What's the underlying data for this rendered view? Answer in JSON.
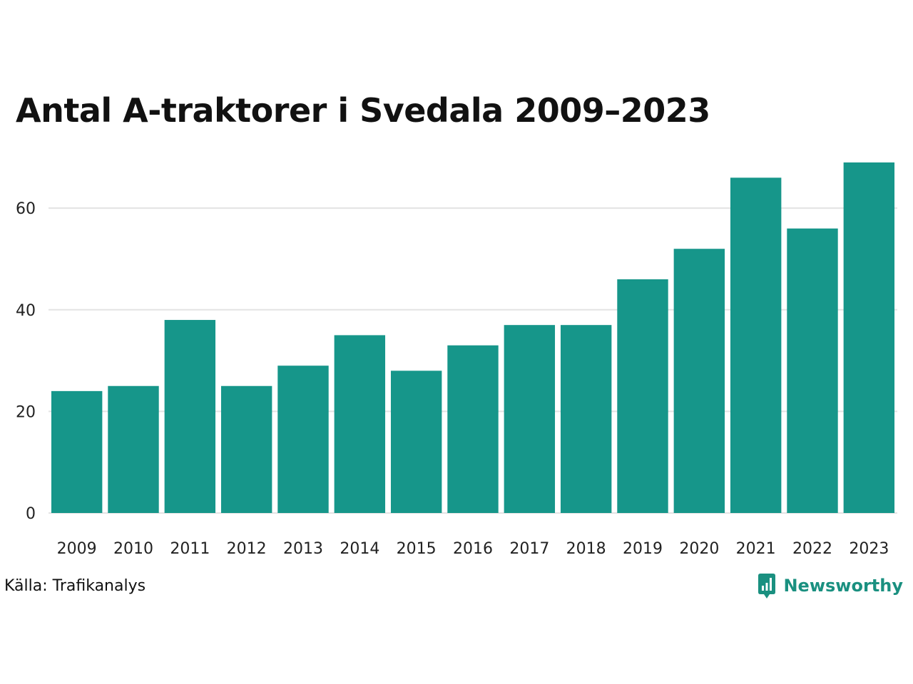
{
  "chart_data": {
    "type": "bar",
    "title": "Antal A-traktorer i Svedala 2009–2023",
    "categories": [
      "2009",
      "2010",
      "2011",
      "2012",
      "2013",
      "2014",
      "2015",
      "2016",
      "2017",
      "2018",
      "2019",
      "2020",
      "2021",
      "2022",
      "2023"
    ],
    "values": [
      24,
      25,
      38,
      25,
      29,
      35,
      28,
      33,
      37,
      37,
      46,
      52,
      66,
      56,
      69
    ],
    "xlabel": "",
    "ylabel": "",
    "ylim": [
      0,
      69
    ],
    "yticks": [
      0,
      20,
      40,
      60
    ],
    "grid": true,
    "bar_color": "#16968a",
    "grid_color": "#e3e3e3"
  },
  "footer": {
    "source": "Källa: Trafikanalys",
    "brand": "Newsworthy",
    "brand_color": "#1a9080",
    "brand_icon": "newsworthy-logo-icon"
  }
}
